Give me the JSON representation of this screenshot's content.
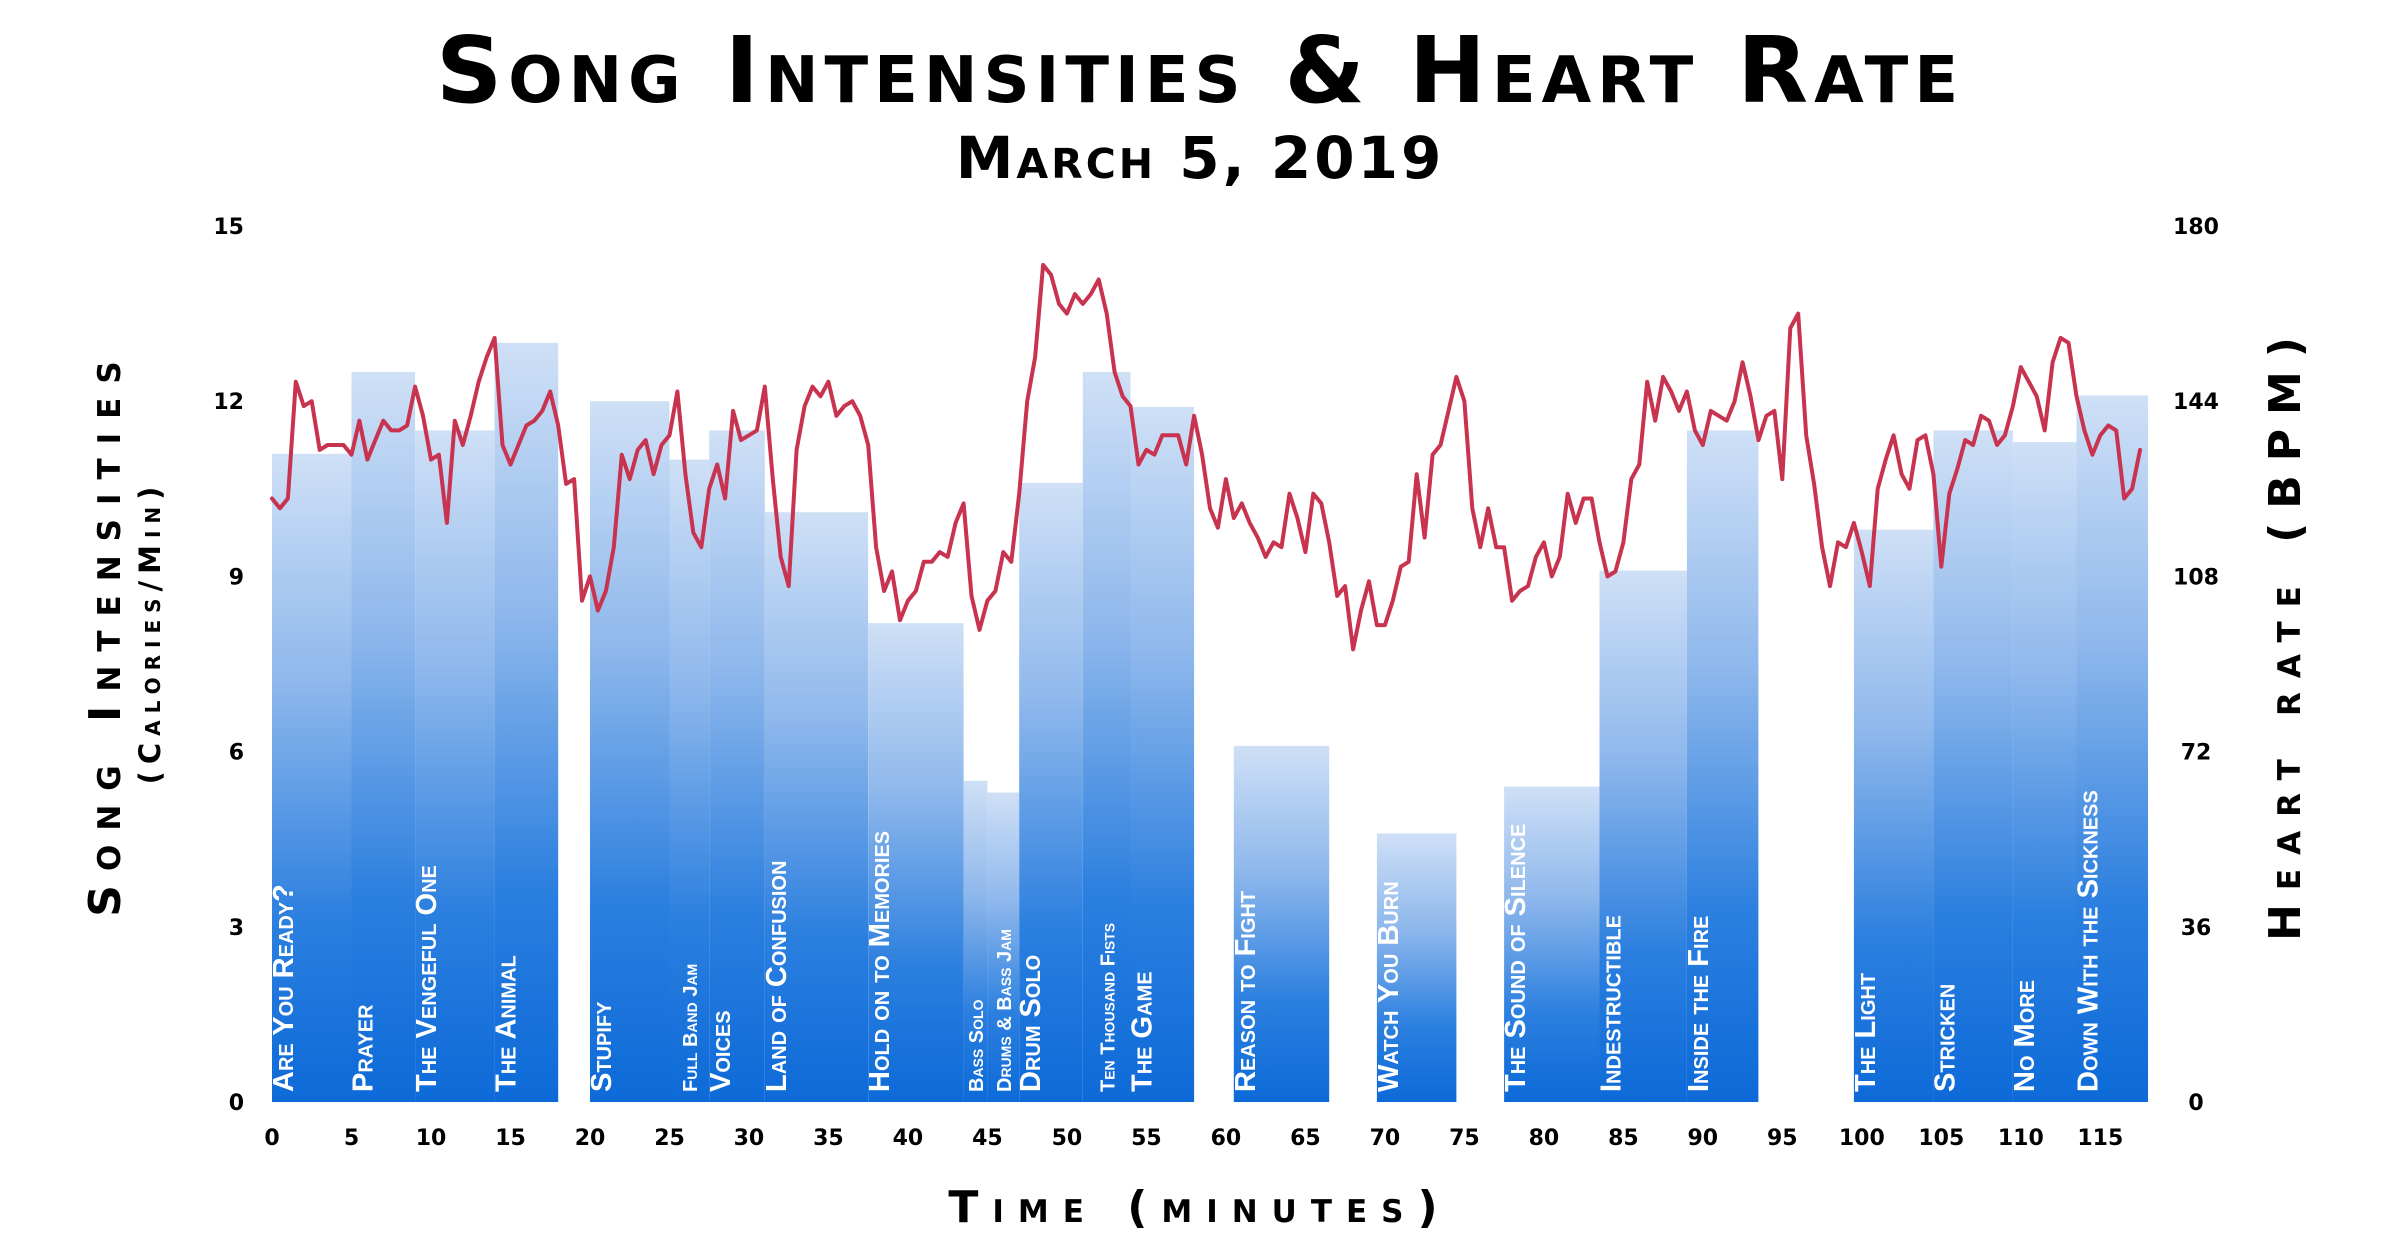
{
  "chart_data": {
    "type": "bar",
    "title": "Song Intensities & Heart Rate",
    "subtitle": "March 5, 2019",
    "xlabel": "Time (minutes)",
    "ylabel": "Song Intensities",
    "ylabel_sub": "(Calories/Min)",
    "y2label": "Heart rate (BPM)",
    "xlim": [
      0,
      118
    ],
    "ylim": [
      0,
      15
    ],
    "y2lim": [
      0,
      180
    ],
    "xticks": [
      "0",
      "5",
      "10",
      "15",
      "20",
      "25",
      "30",
      "35",
      "40",
      "45",
      "50",
      "55",
      "60",
      "65",
      "70",
      "75",
      "80",
      "85",
      "90",
      "95",
      "100",
      "105",
      "110",
      "115"
    ],
    "yticks": [
      "0",
      "3",
      "6",
      "9",
      "12",
      "15"
    ],
    "y2ticks": [
      "0",
      "36",
      "72",
      "108",
      "144",
      "180"
    ],
    "colors": {
      "bar_top": "#cfe0f6",
      "bar_bottom": "#0d6ad8",
      "line": "#c8334f"
    },
    "series": [
      {
        "name": "Song Intensity",
        "type": "bar",
        "songs": [
          {
            "label": "Are You Ready?",
            "start": 0,
            "end": 5,
            "value": 11.1
          },
          {
            "label": "Prayer",
            "start": 5,
            "end": 9,
            "value": 12.5
          },
          {
            "label": "The Vengeful One",
            "start": 9,
            "end": 14,
            "value": 11.5
          },
          {
            "label": "The Animal",
            "start": 14,
            "end": 18,
            "value": 13.0
          },
          {
            "label": "Stupify",
            "start": 20,
            "end": 25,
            "value": 12.0
          },
          {
            "label": "Full Band Jam",
            "start": 25,
            "end": 27.5,
            "value": 11.0
          },
          {
            "label": "Voices",
            "start": 27.5,
            "end": 31,
            "value": 11.5
          },
          {
            "label": "Land of Confusion",
            "start": 31,
            "end": 37.5,
            "value": 10.1
          },
          {
            "label": "Hold on to Memories",
            "start": 37.5,
            "end": 43.5,
            "value": 8.2
          },
          {
            "label": "Bass Solo",
            "start": 43.5,
            "end": 45,
            "value": 5.5
          },
          {
            "label": "Drums & Bass Jam",
            "start": 45,
            "end": 47,
            "value": 5.3
          },
          {
            "label": "Drum Solo",
            "start": 47,
            "end": 51,
            "value": 10.6
          },
          {
            "label": "Ten Thousand Fists",
            "start": 51,
            "end": 54,
            "value": 12.5
          },
          {
            "label": "The Game",
            "start": 54,
            "end": 58,
            "value": 11.9
          },
          {
            "label": "Reason to Fight",
            "start": 60.5,
            "end": 66.5,
            "value": 6.1
          },
          {
            "label": "Watch You Burn",
            "start": 69.5,
            "end": 74.5,
            "value": 4.6
          },
          {
            "label": "The Sound of Silence",
            "start": 77.5,
            "end": 83.5,
            "value": 5.4
          },
          {
            "label": "Indestructible",
            "start": 83.5,
            "end": 89,
            "value": 9.1
          },
          {
            "label": "Inside the Fire",
            "start": 89,
            "end": 93.5,
            "value": 11.5
          },
          {
            "label": "The Light",
            "start": 99.5,
            "end": 104.5,
            "value": 9.8
          },
          {
            "label": "Stricken",
            "start": 104.5,
            "end": 109.5,
            "value": 11.5
          },
          {
            "label": "No More",
            "start": 109.5,
            "end": 113.5,
            "value": 11.3
          },
          {
            "label": "Down With the Sickness",
            "start": 113.5,
            "end": 118,
            "value": 12.1
          }
        ]
      },
      {
        "name": "Heart Rate",
        "type": "line",
        "axis": "y2",
        "x": [
          0,
          0.5,
          1,
          1.5,
          2,
          2.5,
          3,
          3.5,
          4,
          4.5,
          5,
          5.5,
          6,
          6.5,
          7,
          7.5,
          8,
          8.5,
          9,
          9.5,
          10,
          10.5,
          11,
          11.5,
          12,
          12.5,
          13,
          13.5,
          14,
          14.5,
          15,
          15.5,
          16,
          16.5,
          17,
          17.5,
          18,
          18.5,
          19,
          19.5,
          20,
          20.5,
          21,
          21.5,
          22,
          22.5,
          23,
          23.5,
          24,
          24.5,
          25,
          25.5,
          26,
          26.5,
          27,
          27.5,
          28,
          28.5,
          29,
          29.5,
          30,
          30.5,
          31,
          31.5,
          32,
          32.5,
          33,
          33.5,
          34,
          34.5,
          35,
          35.5,
          36,
          36.5,
          37,
          37.5,
          38,
          38.5,
          39,
          39.5,
          40,
          40.5,
          41,
          41.5,
          42,
          42.5,
          43,
          43.5,
          44,
          44.5,
          45,
          45.5,
          46,
          46.5,
          47,
          47.5,
          48,
          48.5,
          49,
          49.5,
          50,
          50.5,
          51,
          51.5,
          52,
          52.5,
          53,
          53.5,
          54,
          54.5,
          55,
          55.5,
          56,
          56.5,
          57,
          57.5,
          58,
          58.5,
          59,
          59.5,
          60,
          60.5,
          61,
          61.5,
          62,
          62.5,
          63,
          63.5,
          64,
          64.5,
          65,
          65.5,
          66,
          66.5,
          67,
          67.5,
          68,
          68.5,
          69,
          69.5,
          70,
          70.5,
          71,
          71.5,
          72,
          72.5,
          73,
          73.5,
          74,
          74.5,
          75,
          75.5,
          76,
          76.5,
          77,
          77.5,
          78,
          78.5,
          79,
          79.5,
          80,
          80.5,
          81,
          81.5,
          82,
          82.5,
          83,
          83.5,
          84,
          84.5,
          85,
          85.5,
          86,
          86.5,
          87,
          87.5,
          88,
          88.5,
          89,
          89.5,
          90,
          90.5,
          91,
          91.5,
          92,
          92.5,
          93,
          93.5,
          94,
          94.5,
          95,
          95.5,
          96,
          96.5,
          97,
          97.5,
          98,
          98.5,
          99,
          99.5,
          100,
          100.5,
          101,
          101.5,
          102,
          102.5,
          103,
          103.5,
          104,
          104.5,
          105,
          105.5,
          106,
          106.5,
          107,
          107.5,
          108,
          108.5,
          109,
          109.5,
          110,
          110.5,
          111,
          111.5,
          112,
          112.5,
          113,
          113.5,
          114,
          114.5,
          115,
          115.5,
          116,
          116.5,
          117,
          117.5
        ],
        "values": [
          124,
          122,
          124,
          148,
          143,
          144,
          134,
          135,
          135,
          135,
          133,
          140,
          132,
          136,
          140,
          138,
          138,
          139,
          147,
          141,
          132,
          133,
          119,
          140,
          135,
          141,
          148,
          153,
          157,
          135,
          131,
          135,
          139,
          140,
          142,
          146,
          139,
          127,
          128,
          103,
          108,
          101,
          105,
          114,
          133,
          128,
          134,
          136,
          129,
          135,
          137,
          146,
          129,
          117,
          114,
          126,
          131,
          124,
          142,
          136,
          137,
          138,
          147,
          128,
          112,
          106,
          134,
          143,
          147,
          145,
          148,
          141,
          143,
          144,
          141,
          135,
          114,
          105,
          109,
          99,
          103,
          105,
          111,
          111,
          113,
          112,
          119,
          123,
          104,
          97,
          103,
          105,
          113,
          111,
          125,
          144,
          153,
          172,
          170,
          164,
          162,
          166,
          164,
          166,
          169,
          162,
          150,
          145,
          143,
          131,
          134,
          133,
          137,
          137,
          137,
          131,
          141,
          133,
          122,
          118,
          128,
          120,
          123,
          119,
          116,
          112,
          115,
          114,
          125,
          120,
          113,
          125,
          123,
          115,
          104,
          106,
          93,
          101,
          107,
          98,
          98,
          103,
          110,
          111,
          129,
          116,
          133,
          135,
          142,
          149,
          144,
          122,
          114,
          122,
          114,
          114,
          103,
          105,
          106,
          112,
          115,
          108,
          112,
          125,
          119,
          124,
          124,
          115,
          108,
          109,
          115,
          128,
          131,
          148,
          140,
          149,
          146,
          142,
          146,
          138,
          135,
          142,
          141,
          140,
          144,
          152,
          145,
          136,
          141,
          142,
          128,
          159,
          162,
          137,
          127,
          114,
          106,
          115,
          114,
          119,
          113,
          106,
          126,
          132,
          137,
          129,
          126,
          136,
          137,
          129,
          110,
          125,
          130,
          136,
          135,
          141,
          140,
          135,
          137,
          143,
          151,
          148,
          145,
          138,
          152,
          157,
          156,
          145,
          138,
          133,
          137,
          139,
          138,
          124,
          126,
          134
        ]
      }
    ]
  }
}
